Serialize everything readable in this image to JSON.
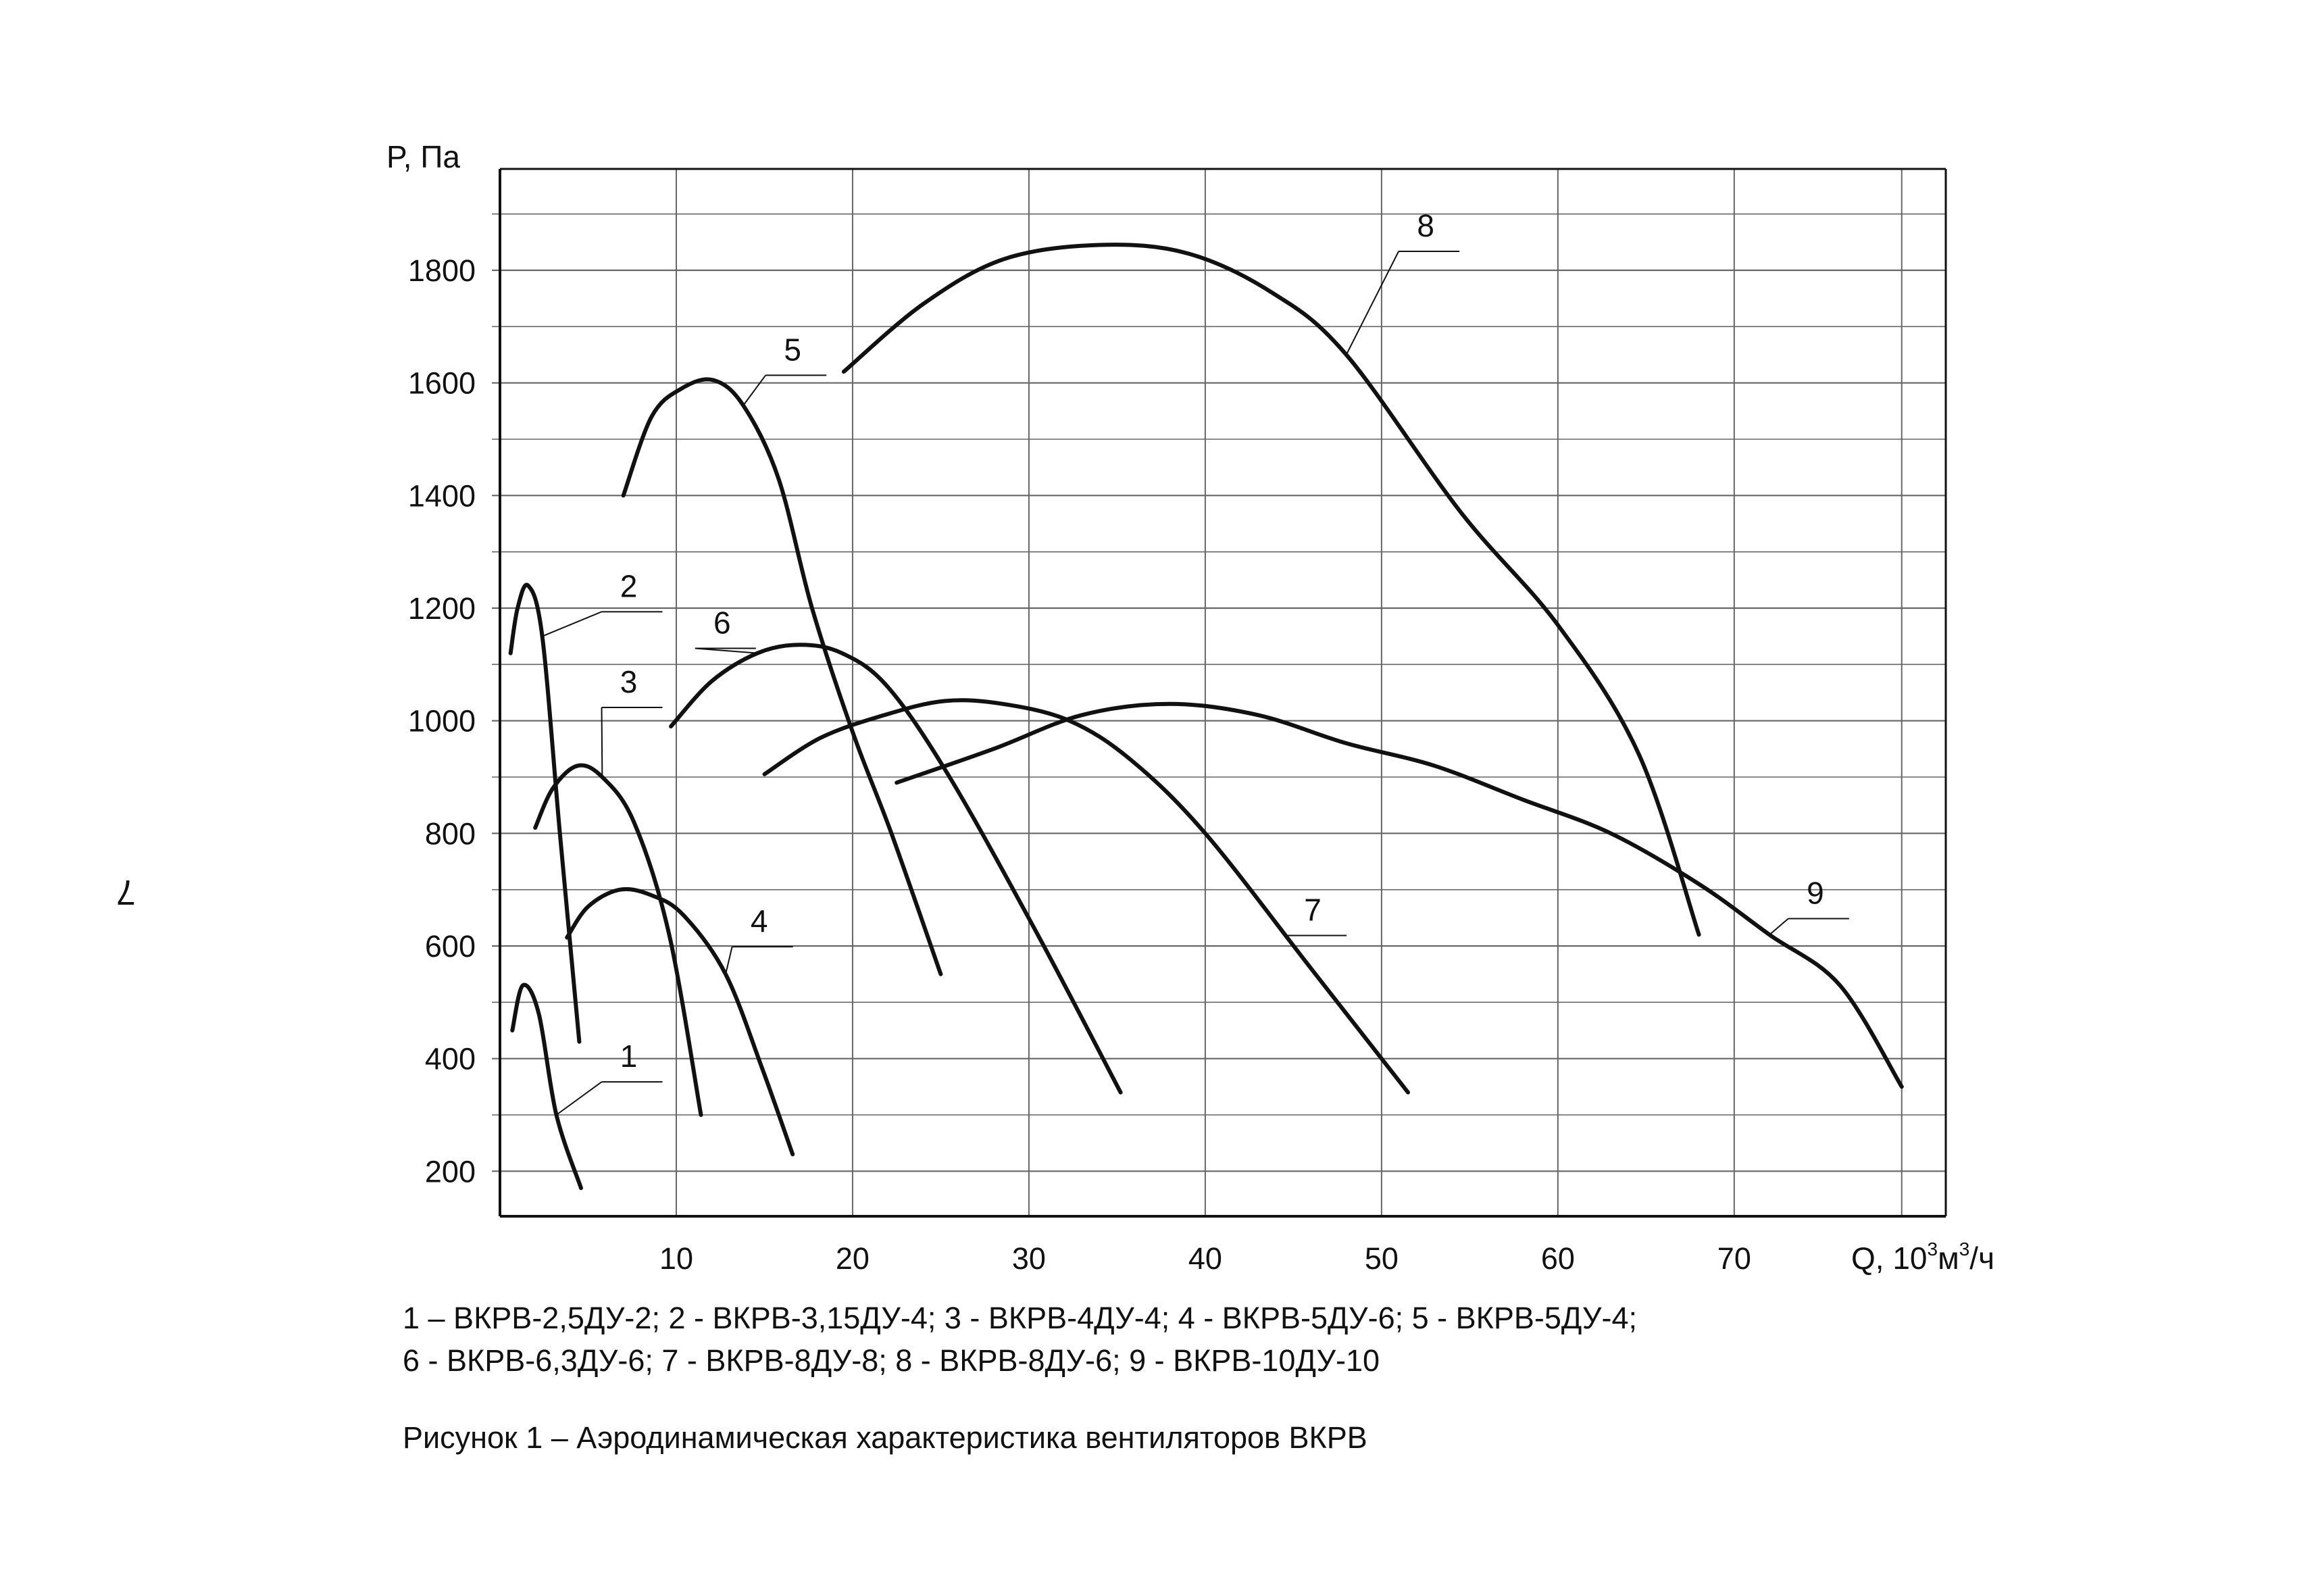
{
  "page_number": "7",
  "chart_data": {
    "type": "line",
    "xlabel_main": "Q, 10",
    "xlabel_sup1": "3",
    "xlabel_mid": "м",
    "xlabel_sup2": "3",
    "xlabel_end": "/ч",
    "ylabel": "P, Па",
    "xlim": [
      0,
      82
    ],
    "ylim": [
      120,
      1980
    ],
    "x_ticks": [
      10,
      20,
      30,
      40,
      50,
      60,
      70
    ],
    "y_ticks": [
      200,
      400,
      600,
      800,
      1000,
      1200,
      1400,
      1600,
      1800
    ],
    "grid": true,
    "series": [
      {
        "name": "1",
        "label_at": [
          7.3,
          385
        ],
        "pts": [
          [
            0.7,
            450
          ],
          [
            1.3,
            530
          ],
          [
            2.2,
            480
          ],
          [
            3.2,
            300
          ],
          [
            4.6,
            170
          ]
        ]
      },
      {
        "name": "2",
        "label_at": [
          7.3,
          1220
        ],
        "pts": [
          [
            0.6,
            1120
          ],
          [
            1.0,
            1200
          ],
          [
            1.6,
            1240
          ],
          [
            2.4,
            1150
          ],
          [
            3.4,
            800
          ],
          [
            4.5,
            430
          ]
        ]
      },
      {
        "name": "3",
        "label_at": [
          7.3,
          1050
        ],
        "pts": [
          [
            2.0,
            810
          ],
          [
            3.0,
            880
          ],
          [
            4.4,
            920
          ],
          [
            5.8,
            900
          ],
          [
            7.6,
            820
          ],
          [
            9.6,
            620
          ],
          [
            11.4,
            300
          ]
        ]
      },
      {
        "name": "4",
        "label_at": [
          14.7,
          625
        ],
        "pts": [
          [
            3.8,
            615
          ],
          [
            5.0,
            670
          ],
          [
            6.8,
            700
          ],
          [
            8.6,
            690
          ],
          [
            10.4,
            655
          ],
          [
            12.8,
            550
          ],
          [
            14.9,
            380
          ],
          [
            16.6,
            230
          ]
        ]
      },
      {
        "name": "5",
        "label_at": [
          16.6,
          1640
        ],
        "pts": [
          [
            7.0,
            1400
          ],
          [
            8.6,
            1540
          ],
          [
            10.3,
            1590
          ],
          [
            12.1,
            1605
          ],
          [
            13.8,
            1560
          ],
          [
            15.8,
            1430
          ],
          [
            17.7,
            1200
          ],
          [
            20.0,
            980
          ],
          [
            22.2,
            800
          ],
          [
            25.0,
            550
          ]
        ]
      },
      {
        "name": "6",
        "label_at": [
          12.6,
          1155
        ],
        "pts": [
          [
            9.7,
            990
          ],
          [
            12.0,
            1070
          ],
          [
            14.6,
            1120
          ],
          [
            17.0,
            1135
          ],
          [
            19.4,
            1120
          ],
          [
            22.0,
            1060
          ],
          [
            25.5,
            900
          ],
          [
            30.5,
            620
          ],
          [
            35.2,
            340
          ]
        ]
      },
      {
        "name": "7",
        "label_at": [
          46.1,
          645
        ],
        "pts": [
          [
            15.0,
            905
          ],
          [
            18.2,
            970
          ],
          [
            21.8,
            1010
          ],
          [
            25.2,
            1035
          ],
          [
            28.5,
            1030
          ],
          [
            32.3,
            1000
          ],
          [
            35.8,
            930
          ],
          [
            40.0,
            800
          ],
          [
            46.0,
            560
          ],
          [
            51.5,
            340
          ]
        ]
      },
      {
        "name": "8",
        "label_at": [
          52.5,
          1860
        ],
        "pts": [
          [
            19.5,
            1620
          ],
          [
            24.0,
            1740
          ],
          [
            28.6,
            1820
          ],
          [
            34.0,
            1845
          ],
          [
            39.0,
            1830
          ],
          [
            43.8,
            1760
          ],
          [
            48.0,
            1650
          ],
          [
            54.5,
            1370
          ],
          [
            60.0,
            1170
          ],
          [
            64.6,
            940
          ],
          [
            68.0,
            620
          ]
        ]
      },
      {
        "name": "9",
        "label_at": [
          74.6,
          675
        ],
        "pts": [
          [
            22.5,
            890
          ],
          [
            28.0,
            950
          ],
          [
            33.0,
            1010
          ],
          [
            38.0,
            1030
          ],
          [
            43.0,
            1010
          ],
          [
            48.0,
            960
          ],
          [
            53.0,
            920
          ],
          [
            58.0,
            860
          ],
          [
            63.0,
            800
          ],
          [
            68.0,
            710
          ],
          [
            72.0,
            620
          ],
          [
            76.0,
            530
          ],
          [
            79.5,
            350
          ]
        ]
      }
    ]
  },
  "legend_line1": "1 – ВКРВ-2,5ДУ-2; 2 - ВКРВ-3,15ДУ-4; 3 - ВКРВ-4ДУ-4; 4 - ВКРВ-5ДУ-6; 5 - ВКРВ-5ДУ-4;",
  "legend_line2": "6 - ВКРВ-6,3ДУ-6; 7 - ВКРВ-8ДУ-8; 8 - ВКРВ-8ДУ-6; 9 - ВКРВ-10ДУ-10",
  "caption": "Рисунок 1 – Аэродинамическая характеристика вентиляторов ВКРВ",
  "colors": {
    "ink": "#111111",
    "grid": "#666666",
    "background": "#ffffff"
  }
}
